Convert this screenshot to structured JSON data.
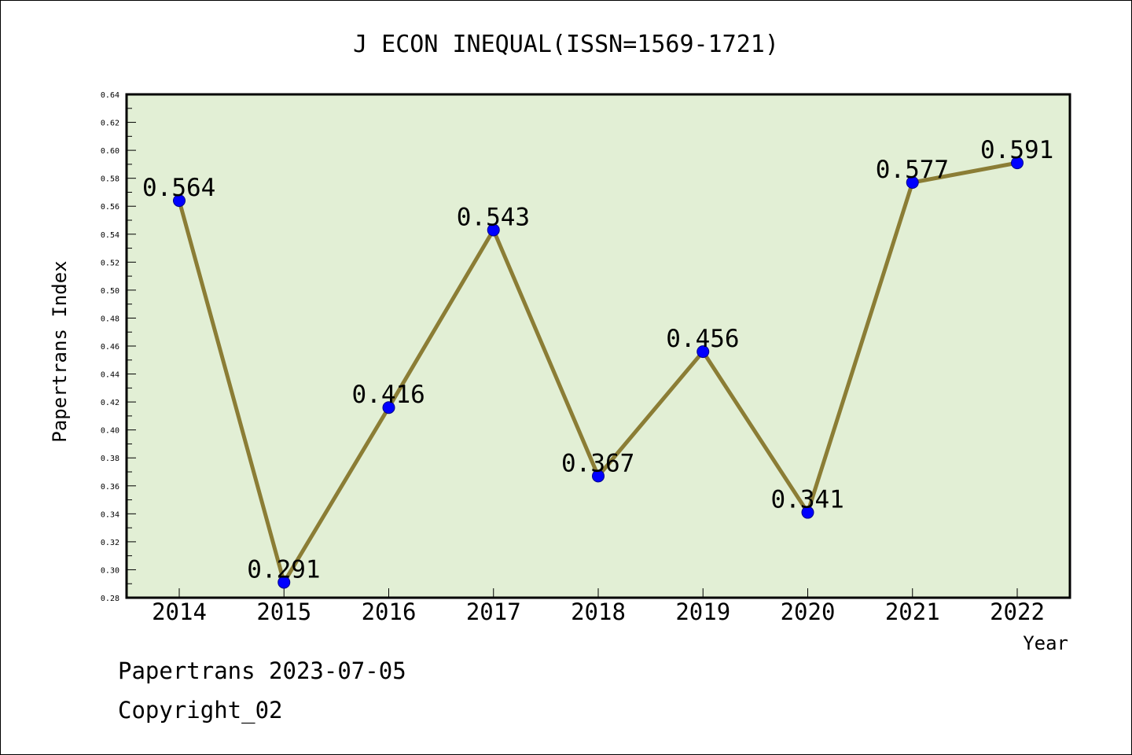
{
  "chart_data": {
    "type": "line",
    "title": "J ECON INEQUAL(ISSN=1569-1721)",
    "xlabel": "Year",
    "ylabel": "Papertrans Index",
    "categories": [
      "2014",
      "2015",
      "2016",
      "2017",
      "2018",
      "2019",
      "2020",
      "2021",
      "2022"
    ],
    "series": [
      {
        "values": [
          0.564,
          0.291,
          0.416,
          0.543,
          0.367,
          0.456,
          0.341,
          0.577,
          0.591
        ]
      }
    ],
    "data_labels": [
      "0.564",
      "0.291",
      "0.416",
      "0.543",
      "0.367",
      "0.456",
      "0.341",
      "0.577",
      "0.591"
    ],
    "ylim": [
      0.28,
      0.64
    ],
    "yticks": [
      "0.28",
      "0.30",
      "0.32",
      "0.34",
      "0.36",
      "0.38",
      "0.40",
      "0.42",
      "0.44",
      "0.46",
      "0.48",
      "0.50",
      "0.52",
      "0.54",
      "0.56",
      "0.58",
      "0.60",
      "0.62",
      "0.64"
    ],
    "grid": false,
    "colors": {
      "plot_background": "#e2efd5",
      "line": "#8b7d35",
      "marker": "#0000ff"
    }
  },
  "footer": {
    "date_line": "Papertrans 2023-07-05",
    "copyright": "Copyright_02"
  }
}
